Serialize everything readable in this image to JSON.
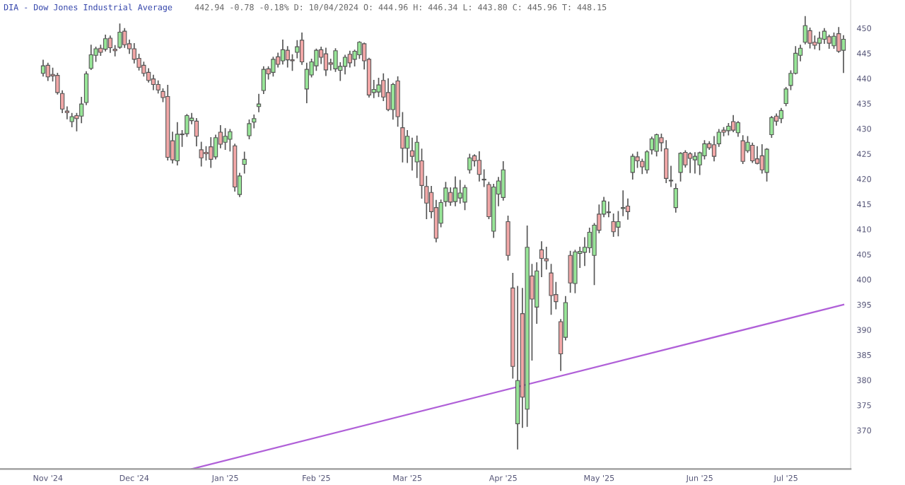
{
  "chart_data": {
    "type": "candlestick",
    "title": "DIA - Dow Jones Industrial Average",
    "subtitle": "442.94 -0.78 -0.18% D: 10/04/2024 O: 444.96 H: 446.34 L: 443.80 C: 445.96 T: 448.15",
    "categories": [
      null,
      "Nov '24",
      null,
      null,
      null,
      null,
      null,
      null,
      null,
      null,
      null,
      null,
      null,
      null,
      null,
      null,
      null,
      null,
      null,
      "Dec '24",
      null,
      null,
      null,
      null,
      null,
      null,
      null,
      null,
      null,
      null,
      null,
      null,
      null,
      null,
      null,
      null,
      null,
      null,
      "Jan '25",
      null,
      null,
      null,
      null,
      null,
      null,
      null,
      null,
      null,
      null,
      null,
      null,
      null,
      null,
      null,
      null,
      null,
      null,
      "Feb '25",
      null,
      null,
      null,
      null,
      null,
      null,
      null,
      null,
      null,
      null,
      null,
      null,
      null,
      null,
      null,
      null,
      null,
      null,
      "Mar '25",
      null,
      null,
      null,
      null,
      null,
      null,
      null,
      null,
      null,
      null,
      null,
      null,
      null,
      null,
      null,
      null,
      null,
      null,
      null,
      "Apr '25",
      null,
      null,
      null,
      null,
      null,
      null,
      null,
      null,
      null,
      null,
      null,
      null,
      null,
      null,
      null,
      null,
      null,
      null,
      null,
      "May '25",
      null,
      null,
      null,
      null,
      null,
      null,
      null,
      null,
      null,
      null,
      null,
      null,
      null,
      null,
      null,
      null,
      null,
      null,
      null,
      null,
      "Jun '25",
      null,
      null,
      null,
      null,
      null,
      null,
      null,
      null,
      null,
      null,
      null,
      null,
      null,
      null,
      null,
      null,
      null,
      "Jul '25",
      null,
      null,
      null,
      null,
      null,
      null,
      null,
      null,
      null,
      null,
      null,
      null
    ],
    "ohlc": [
      [
        441.0,
        443.6,
        440.5,
        442.5
      ],
      [
        442.6,
        443.0,
        439.6,
        440.3
      ],
      [
        440.8,
        442.0,
        439.5,
        440.5
      ],
      [
        440.6,
        441.0,
        436.9,
        437.2
      ],
      [
        437.0,
        437.5,
        433.2,
        433.9
      ],
      [
        433.5,
        434.3,
        432.0,
        433.2
      ],
      [
        431.4,
        433.0,
        430.4,
        432.4
      ],
      [
        432.6,
        433.0,
        429.6,
        432.0
      ],
      [
        432.5,
        436.2,
        431.2,
        434.9
      ],
      [
        435.2,
        441.3,
        434.8,
        440.9
      ],
      [
        442.0,
        446.6,
        441.8,
        444.7
      ],
      [
        444.6,
        446.2,
        443.4,
        445.9
      ],
      [
        446.0,
        446.6,
        444.6,
        445.2
      ],
      [
        445.8,
        448.6,
        445.5,
        447.9
      ],
      [
        448.0,
        448.4,
        445.2,
        446.1
      ],
      [
        445.8,
        446.5,
        444.5,
        445.5
      ],
      [
        446.2,
        450.8,
        446.0,
        449.2
      ],
      [
        449.4,
        449.9,
        446.2,
        446.7
      ],
      [
        446.9,
        447.6,
        445.0,
        445.9
      ],
      [
        445.9,
        446.9,
        443.1,
        443.8
      ],
      [
        444.0,
        444.8,
        441.7,
        442.2
      ],
      [
        442.6,
        443.2,
        440.5,
        441.0
      ],
      [
        441.2,
        441.9,
        439.3,
        439.6
      ],
      [
        439.9,
        440.6,
        437.8,
        438.8
      ],
      [
        438.8,
        439.5,
        437.1,
        437.7
      ],
      [
        437.4,
        437.9,
        435.4,
        436.2
      ],
      [
        436.4,
        438.6,
        423.8,
        424.3
      ],
      [
        427.6,
        429.3,
        423.2,
        423.8
      ],
      [
        423.6,
        431.2,
        422.8,
        428.9
      ],
      [
        428.9,
        429.6,
        426.5,
        428.8
      ],
      [
        429.0,
        432.8,
        428.5,
        432.6
      ],
      [
        431.6,
        433.0,
        431.0,
        432.1
      ],
      [
        431.5,
        432.0,
        426.6,
        428.5
      ],
      [
        425.8,
        427.3,
        422.6,
        424.2
      ],
      [
        425.3,
        426.4,
        423.8,
        425.0
      ],
      [
        426.4,
        428.2,
        422.3,
        423.9
      ],
      [
        424.4,
        428.7,
        424.0,
        428.2
      ],
      [
        429.3,
        430.6,
        426.2,
        426.9
      ],
      [
        427.3,
        430.0,
        425.9,
        428.5
      ],
      [
        427.9,
        429.8,
        425.6,
        429.4
      ],
      [
        426.6,
        426.9,
        417.6,
        418.4
      ],
      [
        416.9,
        421.1,
        416.5,
        420.6
      ],
      [
        422.9,
        425.3,
        421.2,
        423.9
      ],
      [
        428.6,
        431.7,
        428.0,
        431.0
      ],
      [
        431.3,
        432.7,
        430.2,
        432.0
      ],
      [
        434.4,
        436.8,
        433.4,
        434.9
      ],
      [
        437.6,
        442.3,
        437.0,
        441.8
      ],
      [
        441.9,
        442.3,
        439.9,
        440.9
      ],
      [
        441.2,
        444.2,
        440.5,
        443.8
      ],
      [
        444.3,
        445.0,
        442.3,
        442.8
      ],
      [
        443.5,
        447.6,
        442.9,
        445.7
      ],
      [
        445.6,
        446.3,
        442.3,
        443.7
      ],
      [
        443.7,
        444.7,
        441.6,
        443.5
      ],
      [
        445.2,
        447.5,
        444.1,
        446.3
      ],
      [
        447.6,
        449.0,
        442.8,
        443.3
      ],
      [
        437.9,
        443.0,
        435.2,
        441.8
      ],
      [
        440.7,
        443.8,
        440.3,
        443.3
      ],
      [
        442.5,
        445.8,
        441.6,
        445.6
      ],
      [
        445.7,
        446.2,
        443.0,
        444.2
      ],
      [
        444.9,
        446.0,
        440.6,
        441.7
      ],
      [
        443.1,
        443.8,
        441.7,
        442.8
      ],
      [
        441.9,
        445.9,
        441.4,
        445.5
      ],
      [
        441.6,
        443.1,
        439.6,
        442.4
      ],
      [
        442.4,
        444.6,
        440.9,
        444.2
      ],
      [
        444.8,
        445.4,
        442.3,
        443.1
      ],
      [
        443.8,
        445.6,
        442.5,
        445.4
      ],
      [
        444.7,
        447.3,
        444.0,
        447.2
      ],
      [
        446.9,
        447.0,
        441.9,
        443.5
      ],
      [
        443.8,
        444.0,
        436.3,
        436.7
      ],
      [
        437.2,
        439.6,
        436.2,
        437.8
      ],
      [
        437.3,
        440.0,
        436.4,
        438.7
      ],
      [
        439.6,
        440.9,
        435.6,
        436.3
      ],
      [
        437.2,
        439.9,
        433.6,
        433.8
      ],
      [
        433.8,
        439.0,
        431.9,
        438.8
      ],
      [
        439.5,
        440.3,
        430.5,
        432.4
      ],
      [
        430.2,
        433.2,
        423.4,
        426.1
      ],
      [
        426.1,
        429.6,
        423.3,
        428.5
      ],
      [
        425.6,
        428.1,
        421.8,
        424.5
      ],
      [
        423.4,
        428.5,
        420.3,
        427.3
      ],
      [
        423.6,
        425.9,
        416.2,
        418.7
      ],
      [
        418.5,
        420.5,
        412.1,
        415.2
      ],
      [
        417.3,
        418.5,
        412.3,
        413.5
      ],
      [
        414.3,
        415.7,
        407.5,
        408.2
      ],
      [
        411.2,
        415.8,
        410.5,
        415.3
      ],
      [
        415.5,
        419.3,
        414.6,
        418.2
      ],
      [
        417.3,
        418.2,
        414.8,
        415.4
      ],
      [
        415.5,
        420.4,
        414.7,
        418.2
      ],
      [
        416.2,
        419.7,
        415.2,
        417.2
      ],
      [
        415.4,
        418.7,
        413.9,
        418.3
      ],
      [
        421.8,
        424.9,
        421.2,
        424.2
      ],
      [
        424.6,
        424.8,
        422.6,
        423.6
      ],
      [
        423.7,
        425.4,
        419.6,
        420.9
      ],
      [
        419.8,
        421.8,
        418.5,
        419.9
      ],
      [
        418.9,
        419.3,
        412.1,
        412.5
      ],
      [
        409.6,
        418.9,
        408.4,
        418.4
      ],
      [
        417.0,
        420.3,
        414.7,
        419.6
      ],
      [
        416.3,
        423.4,
        415.8,
        421.8
      ],
      [
        411.5,
        412.6,
        403.9,
        404.8
      ],
      [
        398.3,
        401.2,
        380.4,
        382.7
      ],
      [
        371.3,
        398.6,
        366.3,
        379.9
      ],
      [
        393.2,
        398.2,
        370.6,
        376.6
      ],
      [
        374.2,
        410.6,
        370.8,
        406.4
      ],
      [
        400.7,
        403.0,
        384.0,
        396.1
      ],
      [
        394.5,
        403.3,
        391.3,
        401.7
      ],
      [
        405.9,
        407.5,
        400.6,
        404.2
      ],
      [
        404.1,
        406.4,
        402.1,
        403.7
      ],
      [
        401.3,
        403.0,
        393.1,
        396.8
      ],
      [
        397.0,
        399.4,
        394.2,
        395.6
      ],
      [
        391.6,
        392.0,
        381.9,
        385.2
      ],
      [
        388.5,
        396.6,
        388.0,
        395.4
      ],
      [
        404.8,
        405.6,
        397.5,
        399.3
      ],
      [
        399.2,
        405.8,
        397.4,
        405.5
      ],
      [
        405.2,
        406.4,
        402.4,
        405.6
      ],
      [
        405.4,
        408.3,
        402.8,
        406.4
      ],
      [
        406.3,
        410.2,
        405.4,
        409.4
      ],
      [
        404.8,
        411.1,
        399.0,
        410.8
      ],
      [
        413.0,
        414.8,
        409.3,
        409.8
      ],
      [
        413.0,
        416.3,
        412.5,
        415.6
      ],
      [
        413.4,
        415.4,
        412.5,
        413.3
      ],
      [
        411.5,
        413.0,
        408.6,
        409.5
      ],
      [
        410.4,
        413.5,
        408.7,
        411.5
      ],
      [
        414.1,
        417.6,
        412.7,
        414.3
      ],
      [
        414.6,
        416.0,
        412.0,
        413.5
      ],
      [
        421.3,
        424.9,
        420.0,
        424.5
      ],
      [
        424.4,
        425.3,
        422.3,
        423.6
      ],
      [
        423.5,
        423.9,
        421.1,
        422.4
      ],
      [
        421.8,
        425.6,
        421.2,
        425.4
      ],
      [
        425.8,
        428.3,
        425.0,
        428.0
      ],
      [
        425.5,
        428.9,
        424.6,
        428.8
      ],
      [
        428.2,
        428.9,
        425.6,
        427.2
      ],
      [
        426.0,
        427.6,
        419.3,
        420.1
      ],
      [
        419.6,
        422.5,
        418.5,
        419.7
      ],
      [
        414.3,
        419.0,
        413.4,
        418.1
      ],
      [
        421.3,
        425.2,
        419.6,
        425.1
      ],
      [
        425.3,
        425.6,
        422.4,
        422.8
      ],
      [
        425.0,
        425.2,
        421.3,
        424.1
      ],
      [
        423.8,
        425.2,
        421.2,
        424.5
      ],
      [
        422.8,
        425.3,
        420.9,
        425.2
      ],
      [
        424.6,
        427.6,
        424.0,
        427.0
      ],
      [
        427.0,
        427.4,
        425.9,
        426.2
      ],
      [
        426.8,
        428.4,
        423.6,
        424.5
      ],
      [
        427.0,
        429.8,
        426.5,
        429.3
      ],
      [
        429.7,
        430.2,
        428.6,
        429.3
      ],
      [
        429.6,
        431.0,
        428.8,
        430.5
      ],
      [
        431.4,
        432.6,
        429.4,
        429.7
      ],
      [
        429.2,
        431.4,
        428.5,
        431.2
      ],
      [
        427.6,
        428.6,
        423.1,
        423.5
      ],
      [
        425.6,
        428.4,
        425.3,
        427.3
      ],
      [
        426.7,
        427.1,
        423.3,
        423.6
      ],
      [
        424.0,
        426.4,
        423.0,
        423.1
      ],
      [
        424.6,
        426.8,
        421.2,
        421.8
      ],
      [
        421.3,
        426.0,
        419.6,
        425.9
      ],
      [
        428.8,
        432.4,
        428.3,
        432.2
      ],
      [
        432.5,
        432.9,
        430.7,
        431.5
      ],
      [
        432.0,
        434.0,
        431.2,
        433.6
      ],
      [
        435.0,
        438.2,
        434.6,
        437.9
      ],
      [
        438.6,
        441.5,
        437.8,
        441.0
      ],
      [
        441.0,
        446.3,
        440.9,
        445.0
      ],
      [
        444.6,
        446.6,
        443.5,
        446.0
      ],
      [
        447.2,
        452.3,
        446.9,
        450.5
      ],
      [
        449.5,
        450.0,
        446.1,
        447.0
      ],
      [
        447.2,
        448.4,
        445.9,
        446.6
      ],
      [
        447.0,
        449.2,
        445.7,
        448.0
      ],
      [
        447.8,
        449.9,
        447.0,
        449.4
      ],
      [
        448.3,
        448.6,
        446.0,
        447.0
      ],
      [
        446.5,
        449.0,
        446.0,
        448.4
      ],
      [
        448.9,
        450.1,
        445.2,
        445.4
      ],
      [
        445.6,
        448.5,
        441.2,
        447.8
      ]
    ],
    "colors": [
      "#98e698",
      "#f2a7a7",
      "#f2a7a7",
      "#f2a7a7",
      "#f2a7a7",
      "#f2a7a7",
      "#98e698",
      "#f2a7a7",
      "#98e698",
      "#98e698",
      "#98e698",
      "#98e698",
      "#f2a7a7",
      "#98e698",
      "#f2a7a7",
      "#f2a7a7",
      "#98e698",
      "#f2a7a7",
      "#f2a7a7",
      "#f2a7a7",
      "#f2a7a7",
      "#f2a7a7",
      "#f2a7a7",
      "#f2a7a7",
      "#f2a7a7",
      "#f2a7a7",
      "#f2a7a7",
      "#f2a7a7",
      "#98e698",
      "#f2a7a7",
      "#98e698",
      "#98e698",
      "#f2a7a7",
      "#f2a7a7",
      "#f2a7a7",
      "#f2a7a7",
      "#98e698",
      "#f2a7a7",
      "#98e698",
      "#98e698",
      "#f2a7a7",
      "#98e698",
      "#98e698",
      "#98e698",
      "#98e698",
      "#98e698",
      "#98e698",
      "#f2a7a7",
      "#98e698",
      "#f2a7a7",
      "#98e698",
      "#f2a7a7",
      "#f2a7a7",
      "#98e698",
      "#f2a7a7",
      "#98e698",
      "#98e698",
      "#98e698",
      "#f2a7a7",
      "#f2a7a7",
      "#f2a7a7",
      "#98e698",
      "#98e698",
      "#98e698",
      "#f2a7a7",
      "#98e698",
      "#98e698",
      "#f2a7a7",
      "#f2a7a7",
      "#98e698",
      "#98e698",
      "#f2a7a7",
      "#f2a7a7",
      "#98e698",
      "#f2a7a7",
      "#f2a7a7",
      "#98e698",
      "#f2a7a7",
      "#98e698",
      "#f2a7a7",
      "#f2a7a7",
      "#f2a7a7",
      "#f2a7a7",
      "#98e698",
      "#98e698",
      "#f2a7a7",
      "#98e698",
      "#98e698",
      "#98e698",
      "#98e698",
      "#f2a7a7",
      "#f2a7a7",
      "#98e698",
      "#f2a7a7",
      "#98e698",
      "#98e698",
      "#98e698",
      "#f2a7a7",
      "#f2a7a7",
      "#98e698",
      "#f2a7a7",
      "#98e698",
      "#f2a7a7",
      "#98e698",
      "#f2a7a7",
      "#f2a7a7",
      "#f2a7a7",
      "#f2a7a7",
      "#f2a7a7",
      "#98e698",
      "#f2a7a7",
      "#98e698",
      "#98e698",
      "#98e698",
      "#98e698",
      "#98e698",
      "#f2a7a7",
      "#98e698",
      "#f2a7a7",
      "#f2a7a7",
      "#98e698",
      "#98e698",
      "#f2a7a7",
      "#98e698",
      "#f2a7a7",
      "#f2a7a7",
      "#98e698",
      "#98e698",
      "#98e698",
      "#f2a7a7",
      "#f2a7a7",
      "#98e698",
      "#98e698",
      "#98e698",
      "#f2a7a7",
      "#f2a7a7",
      "#98e698",
      "#98e698",
      "#98e698",
      "#f2a7a7",
      "#f2a7a7",
      "#98e698",
      "#f2a7a7",
      "#98e698",
      "#f2a7a7",
      "#98e698",
      "#f2a7a7",
      "#98e698",
      "#f2a7a7",
      "#f2a7a7",
      "#f2a7a7",
      "#98e698",
      "#98e698",
      "#f2a7a7",
      "#98e698",
      "#98e698",
      "#98e698",
      "#98e698",
      "#98e698",
      "#98e698",
      "#f2a7a7",
      "#f2a7a7",
      "#98e698",
      "#98e698",
      "#f2a7a7",
      "#98e698",
      "#f2a7a7",
      "#98e698"
    ],
    "series": [
      {
        "type": "line",
        "color": "#b060d8",
        "values": [
          null,
          null,
          null,
          null,
          null,
          null,
          null,
          null,
          null,
          null,
          null,
          null,
          null,
          null,
          null,
          null,
          null,
          null,
          null,
          null,
          null,
          null,
          null,
          null,
          null,
          null,
          null,
          null,
          null,
          null,
          null,
          362.3,
          null,
          null,
          null,
          null,
          null,
          null,
          null,
          null,
          null,
          null,
          null,
          null,
          null,
          null,
          null,
          null,
          null,
          null,
          null,
          null,
          null,
          null,
          null,
          null,
          null,
          null,
          null,
          null,
          null,
          null,
          null,
          null,
          null,
          null,
          null,
          null,
          null,
          null,
          null,
          null,
          null,
          null,
          null,
          null,
          null,
          null,
          null,
          null,
          null,
          null,
          null,
          null,
          null,
          null,
          null,
          null,
          null,
          null,
          null,
          null,
          null,
          null,
          null,
          null,
          null,
          null,
          null,
          null,
          null,
          null,
          null,
          null,
          null,
          null,
          null,
          null,
          null,
          null,
          null,
          null,
          null,
          null,
          null,
          null,
          null,
          null,
          null,
          null,
          null,
          null,
          null,
          null,
          null,
          null,
          null,
          null,
          null,
          null,
          null,
          null,
          null,
          null,
          null,
          null,
          null,
          null,
          null,
          null,
          null,
          null,
          null,
          null,
          null,
          null,
          null,
          null,
          null,
          null,
          null,
          null,
          null,
          null,
          null,
          null,
          null,
          null,
          null,
          null,
          null,
          null,
          null,
          null,
          null,
          null,
          null,
          395.0
        ]
      }
    ],
    "ylim": [
      362.3,
      455.6
    ],
    "yticks": [
      370,
      375,
      380,
      385,
      390,
      395,
      400,
      405,
      410,
      415,
      420,
      425,
      430,
      435,
      440,
      445,
      450
    ],
    "grid": false
  }
}
